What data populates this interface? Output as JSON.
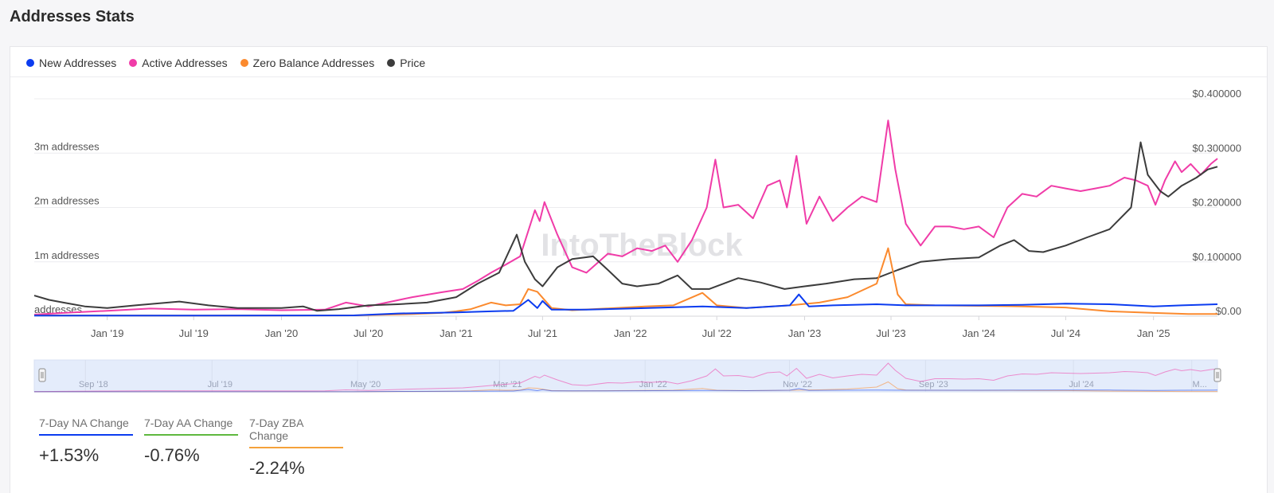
{
  "page_title": "Addresses Stats",
  "legend": [
    {
      "label": "New Addresses",
      "color": "#0b3cf0"
    },
    {
      "label": "Active Addresses",
      "color": "#f03ca8"
    },
    {
      "label": "Zero Balance Addresses",
      "color": "#fb8a2e"
    },
    {
      "label": "Price",
      "color": "#3c3c3c"
    }
  ],
  "watermark": "IntoTheBlock",
  "stats": [
    {
      "label": "7-Day NA Change",
      "value": "+1.53%",
      "color": "#0b3cf0"
    },
    {
      "label": "7-Day AA Change",
      "value": "-0.76%",
      "color": "#5fb83f"
    },
    {
      "label": "7-Day ZBA Change",
      "value": "-2.24%",
      "color": "#f5a23a"
    }
  ],
  "navigator_labels": [
    "Sep '18",
    "Jul '19",
    "May '20",
    "Mar '21",
    "Jan '22",
    "Nov '22",
    "Sep '23",
    "Jul '24",
    "M..."
  ],
  "chart_data": {
    "type": "line",
    "x_range": [
      "2018-08-01",
      "2025-05-15"
    ],
    "x_ticks": [
      {
        "date": "2019-01-01",
        "label": "Jan '19"
      },
      {
        "date": "2019-07-01",
        "label": "Jul '19"
      },
      {
        "date": "2020-01-01",
        "label": "Jan '20"
      },
      {
        "date": "2020-07-01",
        "label": "Jul '20"
      },
      {
        "date": "2021-01-01",
        "label": "Jan '21"
      },
      {
        "date": "2021-07-01",
        "label": "Jul '21"
      },
      {
        "date": "2022-01-01",
        "label": "Jan '22"
      },
      {
        "date": "2022-07-01",
        "label": "Jul '22"
      },
      {
        "date": "2023-01-01",
        "label": "Jan '23"
      },
      {
        "date": "2023-07-01",
        "label": "Jul '23"
      },
      {
        "date": "2024-01-01",
        "label": "Jan '24"
      },
      {
        "date": "2024-07-01",
        "label": "Jul '24"
      },
      {
        "date": "2025-01-01",
        "label": "Jan '25"
      }
    ],
    "y_left": {
      "min": 0,
      "max": 4000000,
      "ticks": [
        {
          "value": 0,
          "label": "addresses"
        },
        {
          "value": 1000000,
          "label": "1m addresses"
        },
        {
          "value": 2000000,
          "label": "2m addresses"
        },
        {
          "value": 3000000,
          "label": "3m addresses"
        }
      ]
    },
    "y_right": {
      "min": 0,
      "max": 0.4,
      "ticks": [
        {
          "value": 0,
          "label": "$0.00"
        },
        {
          "value": 0.1,
          "label": "$0.100000"
        },
        {
          "value": 0.2,
          "label": "$0.200000"
        },
        {
          "value": 0.3,
          "label": "$0.300000"
        },
        {
          "value": 0.4,
          "label": "$0.400000"
        }
      ]
    },
    "grid": true,
    "series": [
      {
        "name": "Active Addresses",
        "axis": "left",
        "color": "#f03ca8",
        "points": [
          [
            "2018-08-01",
            30000
          ],
          [
            "2018-10-01",
            60000
          ],
          [
            "2019-01-01",
            100000
          ],
          [
            "2019-04-01",
            140000
          ],
          [
            "2019-07-01",
            120000
          ],
          [
            "2019-10-01",
            130000
          ],
          [
            "2020-01-01",
            110000
          ],
          [
            "2020-04-01",
            120000
          ],
          [
            "2020-05-15",
            250000
          ],
          [
            "2020-07-01",
            180000
          ],
          [
            "2020-10-01",
            350000
          ],
          [
            "2020-12-01",
            440000
          ],
          [
            "2021-01-15",
            500000
          ],
          [
            "2021-02-15",
            650000
          ],
          [
            "2021-03-15",
            800000
          ],
          [
            "2021-04-15",
            950000
          ],
          [
            "2021-05-15",
            1100000
          ],
          [
            "2021-06-15",
            1950000
          ],
          [
            "2021-06-25",
            1750000
          ],
          [
            "2021-07-05",
            2100000
          ],
          [
            "2021-08-01",
            1500000
          ],
          [
            "2021-09-01",
            900000
          ],
          [
            "2021-10-01",
            800000
          ],
          [
            "2021-11-15",
            1150000
          ],
          [
            "2021-12-15",
            1100000
          ],
          [
            "2022-01-15",
            1250000
          ],
          [
            "2022-02-15",
            1200000
          ],
          [
            "2022-03-15",
            1300000
          ],
          [
            "2022-04-10",
            1000000
          ],
          [
            "2022-05-10",
            1400000
          ],
          [
            "2022-06-10",
            2000000
          ],
          [
            "2022-06-28",
            2880000
          ],
          [
            "2022-07-15",
            2000000
          ],
          [
            "2022-08-15",
            2050000
          ],
          [
            "2022-09-15",
            1800000
          ],
          [
            "2022-10-15",
            2400000
          ],
          [
            "2022-11-10",
            2500000
          ],
          [
            "2022-11-25",
            2000000
          ],
          [
            "2022-12-15",
            2950000
          ],
          [
            "2023-01-05",
            1700000
          ],
          [
            "2023-02-01",
            2200000
          ],
          [
            "2023-03-01",
            1750000
          ],
          [
            "2023-04-01",
            2000000
          ],
          [
            "2023-05-01",
            2200000
          ],
          [
            "2023-06-01",
            2100000
          ],
          [
            "2023-06-25",
            3600000
          ],
          [
            "2023-07-10",
            2700000
          ],
          [
            "2023-08-01",
            1700000
          ],
          [
            "2023-09-01",
            1300000
          ],
          [
            "2023-10-01",
            1650000
          ],
          [
            "2023-11-01",
            1650000
          ],
          [
            "2023-12-01",
            1600000
          ],
          [
            "2024-01-01",
            1650000
          ],
          [
            "2024-02-01",
            1450000
          ],
          [
            "2024-03-01",
            2000000
          ],
          [
            "2024-04-01",
            2250000
          ],
          [
            "2024-05-01",
            2200000
          ],
          [
            "2024-06-01",
            2400000
          ],
          [
            "2024-07-01",
            2350000
          ],
          [
            "2024-08-01",
            2300000
          ],
          [
            "2024-09-01",
            2350000
          ],
          [
            "2024-10-01",
            2400000
          ],
          [
            "2024-11-01",
            2550000
          ],
          [
            "2024-11-25",
            2500000
          ],
          [
            "2024-12-20",
            2400000
          ],
          [
            "2025-01-05",
            2050000
          ],
          [
            "2025-01-25",
            2500000
          ],
          [
            "2025-02-15",
            2850000
          ],
          [
            "2025-03-01",
            2650000
          ],
          [
            "2025-03-20",
            2800000
          ],
          [
            "2025-04-10",
            2600000
          ],
          [
            "2025-05-01",
            2800000
          ],
          [
            "2025-05-15",
            2900000
          ]
        ]
      },
      {
        "name": "Price",
        "axis": "right",
        "color": "#3c3c3c",
        "points": [
          [
            "2018-08-01",
            0.038
          ],
          [
            "2018-09-01",
            0.03
          ],
          [
            "2018-10-01",
            0.025
          ],
          [
            "2018-11-15",
            0.018
          ],
          [
            "2019-01-01",
            0.015
          ],
          [
            "2019-03-01",
            0.02
          ],
          [
            "2019-06-01",
            0.027
          ],
          [
            "2019-08-01",
            0.02
          ],
          [
            "2019-10-01",
            0.015
          ],
          [
            "2020-01-01",
            0.015
          ],
          [
            "2020-02-15",
            0.018
          ],
          [
            "2020-03-15",
            0.01
          ],
          [
            "2020-05-01",
            0.013
          ],
          [
            "2020-07-01",
            0.02
          ],
          [
            "2020-09-01",
            0.022
          ],
          [
            "2020-11-01",
            0.025
          ],
          [
            "2021-01-01",
            0.035
          ],
          [
            "2021-02-15",
            0.06
          ],
          [
            "2021-04-01",
            0.08
          ],
          [
            "2021-05-08",
            0.15
          ],
          [
            "2021-05-25",
            0.1
          ],
          [
            "2021-06-15",
            0.068
          ],
          [
            "2021-07-01",
            0.055
          ],
          [
            "2021-08-01",
            0.09
          ],
          [
            "2021-09-01",
            0.105
          ],
          [
            "2021-10-15",
            0.11
          ],
          [
            "2021-11-15",
            0.085
          ],
          [
            "2021-12-15",
            0.06
          ],
          [
            "2022-01-15",
            0.055
          ],
          [
            "2022-03-01",
            0.06
          ],
          [
            "2022-04-10",
            0.075
          ],
          [
            "2022-05-10",
            0.05
          ],
          [
            "2022-06-15",
            0.05
          ],
          [
            "2022-08-15",
            0.07
          ],
          [
            "2022-10-01",
            0.062
          ],
          [
            "2022-11-20",
            0.05
          ],
          [
            "2023-01-01",
            0.055
          ],
          [
            "2023-02-15",
            0.06
          ],
          [
            "2023-04-15",
            0.068
          ],
          [
            "2023-06-01",
            0.07
          ],
          [
            "2023-07-15",
            0.085
          ],
          [
            "2023-09-01",
            0.1
          ],
          [
            "2023-11-01",
            0.105
          ],
          [
            "2024-01-01",
            0.108
          ],
          [
            "2024-02-15",
            0.13
          ],
          [
            "2024-03-15",
            0.14
          ],
          [
            "2024-04-15",
            0.12
          ],
          [
            "2024-05-15",
            0.118
          ],
          [
            "2024-07-01",
            0.13
          ],
          [
            "2024-08-15",
            0.145
          ],
          [
            "2024-10-01",
            0.16
          ],
          [
            "2024-11-15",
            0.2
          ],
          [
            "2024-12-05",
            0.32
          ],
          [
            "2024-12-20",
            0.26
          ],
          [
            "2025-01-15",
            0.23
          ],
          [
            "2025-02-01",
            0.22
          ],
          [
            "2025-03-01",
            0.24
          ],
          [
            "2025-04-01",
            0.255
          ],
          [
            "2025-04-25",
            0.27
          ],
          [
            "2025-05-15",
            0.275
          ]
        ]
      },
      {
        "name": "Zero Balance Addresses",
        "axis": "left",
        "color": "#fb8a2e",
        "points": [
          [
            "2018-08-01",
            15000
          ],
          [
            "2019-06-01",
            10000
          ],
          [
            "2020-06-01",
            15000
          ],
          [
            "2020-10-01",
            40000
          ],
          [
            "2020-12-01",
            60000
          ],
          [
            "2021-01-01",
            90000
          ],
          [
            "2021-02-01",
            130000
          ],
          [
            "2021-03-15",
            250000
          ],
          [
            "2021-04-15",
            200000
          ],
          [
            "2021-05-15",
            220000
          ],
          [
            "2021-06-01",
            500000
          ],
          [
            "2021-06-20",
            450000
          ],
          [
            "2021-07-20",
            150000
          ],
          [
            "2021-09-01",
            110000
          ],
          [
            "2021-12-01",
            150000
          ],
          [
            "2022-02-01",
            180000
          ],
          [
            "2022-04-01",
            200000
          ],
          [
            "2022-06-01",
            430000
          ],
          [
            "2022-07-01",
            200000
          ],
          [
            "2022-09-01",
            150000
          ],
          [
            "2022-12-01",
            200000
          ],
          [
            "2023-02-01",
            250000
          ],
          [
            "2023-04-01",
            350000
          ],
          [
            "2023-06-01",
            600000
          ],
          [
            "2023-06-25",
            1250000
          ],
          [
            "2023-07-15",
            400000
          ],
          [
            "2023-08-01",
            220000
          ],
          [
            "2023-10-01",
            200000
          ],
          [
            "2024-01-01",
            190000
          ],
          [
            "2024-04-01",
            180000
          ],
          [
            "2024-07-01",
            160000
          ],
          [
            "2024-10-01",
            90000
          ],
          [
            "2025-01-01",
            60000
          ],
          [
            "2025-03-15",
            40000
          ],
          [
            "2025-05-15",
            40000
          ]
        ]
      },
      {
        "name": "New Addresses",
        "axis": "left",
        "color": "#0b3cf0",
        "points": [
          [
            "2018-08-01",
            10000
          ],
          [
            "2019-06-01",
            10000
          ],
          [
            "2020-06-01",
            15000
          ],
          [
            "2020-09-01",
            50000
          ],
          [
            "2021-01-01",
            70000
          ],
          [
            "2021-03-15",
            90000
          ],
          [
            "2021-05-01",
            100000
          ],
          [
            "2021-06-01",
            300000
          ],
          [
            "2021-06-20",
            150000
          ],
          [
            "2021-07-01",
            280000
          ],
          [
            "2021-07-20",
            120000
          ],
          [
            "2021-10-01",
            120000
          ],
          [
            "2022-01-01",
            140000
          ],
          [
            "2022-06-01",
            180000
          ],
          [
            "2022-09-01",
            150000
          ],
          [
            "2022-12-01",
            200000
          ],
          [
            "2022-12-20",
            400000
          ],
          [
            "2023-01-10",
            180000
          ],
          [
            "2023-03-01",
            200000
          ],
          [
            "2023-06-01",
            220000
          ],
          [
            "2023-08-01",
            200000
          ],
          [
            "2024-01-01",
            200000
          ],
          [
            "2024-04-01",
            210000
          ],
          [
            "2024-07-01",
            230000
          ],
          [
            "2024-10-01",
            220000
          ],
          [
            "2025-01-01",
            180000
          ],
          [
            "2025-03-01",
            200000
          ],
          [
            "2025-05-15",
            220000
          ]
        ]
      }
    ]
  }
}
